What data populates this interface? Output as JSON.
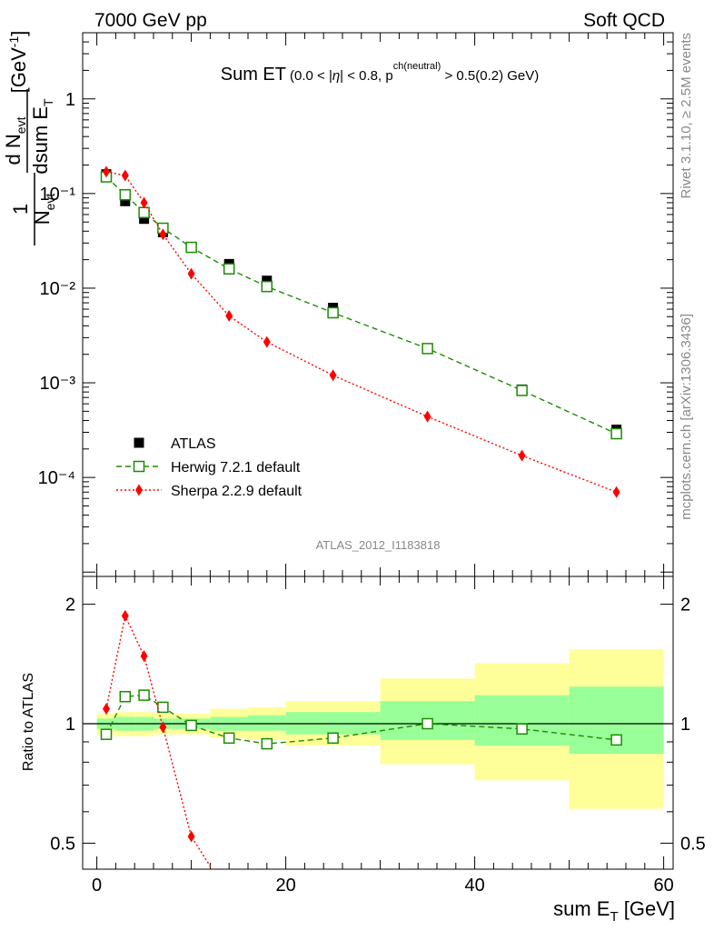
{
  "header": {
    "left": "7000 GeV pp",
    "right": "Soft QCD"
  },
  "side": {
    "rivet": "Rivet 3.1.10, ≥ 2.5M events",
    "mcplots": "mcplots.cern.ch [arXiv:1306.3436]"
  },
  "watermark": "ATLAS_2012_I1183818",
  "colors": {
    "atlas": "#000000",
    "herwig": "#1a8c00",
    "sherpa": "#ff0000",
    "band_inner": "#99ff99",
    "band_outer": "#ffff99"
  },
  "chart_data": [
    {
      "type": "scatter",
      "title": "Sum ET (0.0 < |η| < 0.8, p_T^ch(neutral) > 0.5(0.2) GeV)",
      "title_main": "Sum ET",
      "title_sel_a": "(0.0 < |",
      "title_sel_eta": "η",
      "title_sel_b": "| < 0.8, p",
      "title_sel_sup": "ch(neutral)",
      "title_sel_c": " > 0.5(0.2) GeV)",
      "ylabel": "1/N_evt dN_evt/dsumE_T [GeV^-1]",
      "yscale": "log",
      "xlim": [
        -1.5,
        61
      ],
      "ylim": [
        9e-06,
        5
      ],
      "yticks": [
        {
          "value": 1,
          "label": "1"
        },
        {
          "value": 0.1,
          "label": "10⁻¹"
        },
        {
          "value": 0.01,
          "label": "10⁻²"
        },
        {
          "value": 0.001,
          "label": "10⁻³"
        },
        {
          "value": 0.0001,
          "label": "10⁻⁴"
        }
      ],
      "legend_position": "lower-left",
      "series": [
        {
          "name": "ATLAS",
          "marker": "filled-square",
          "x": [
            1,
            3,
            5,
            7,
            10,
            14,
            18,
            25,
            35,
            45,
            55
          ],
          "y": [
            0.16,
            0.083,
            0.054,
            0.039,
            0.027,
            0.018,
            0.012,
            0.0062,
            0.0023,
            0.00085,
            0.00032
          ]
        },
        {
          "name": "Herwig 7.2.1 default",
          "marker": "open-square",
          "line": "dashed",
          "x": [
            1,
            3,
            5,
            7,
            10,
            14,
            18,
            25,
            35,
            45,
            55
          ],
          "y": [
            0.15,
            0.097,
            0.063,
            0.043,
            0.027,
            0.016,
            0.0104,
            0.0055,
            0.0023,
            0.00083,
            0.00029
          ]
        },
        {
          "name": "Sherpa 2.2.9 default",
          "marker": "filled-diamond",
          "line": "dotted",
          "x": [
            1,
            3,
            5,
            7,
            10,
            14,
            18,
            25,
            35,
            45,
            55
          ],
          "y": [
            0.17,
            0.155,
            0.08,
            0.037,
            0.0142,
            0.0051,
            0.0027,
            0.0012,
            0.00044,
            0.00017,
            7e-05
          ]
        }
      ]
    },
    {
      "type": "line",
      "ylabel": "Ratio to ATLAS",
      "xlabel": "sum E_T [GeV]",
      "yscale": "log",
      "xlim": [
        -1.5,
        61
      ],
      "ylim": [
        0.43,
        2.35
      ],
      "xticks": [
        0,
        20,
        40,
        60
      ],
      "yticks": [
        {
          "value": 0.5,
          "label": "0.5"
        },
        {
          "value": 1,
          "label": "1"
        },
        {
          "value": 2,
          "label": "2"
        }
      ],
      "bands": {
        "edges": [
          0,
          2,
          4,
          6,
          8,
          12,
          16,
          20,
          30,
          40,
          50,
          60
        ],
        "inner_lo": [
          0.97,
          0.96,
          0.96,
          0.97,
          0.97,
          0.96,
          0.96,
          0.94,
          0.91,
          0.88,
          0.84
        ],
        "inner_hi": [
          1.03,
          1.04,
          1.04,
          1.03,
          1.03,
          1.04,
          1.05,
          1.07,
          1.14,
          1.18,
          1.24
        ],
        "outer_lo": [
          0.94,
          0.93,
          0.93,
          0.94,
          0.94,
          0.92,
          0.91,
          0.88,
          0.79,
          0.72,
          0.61
        ],
        "outer_hi": [
          1.06,
          1.07,
          1.07,
          1.06,
          1.06,
          1.09,
          1.1,
          1.14,
          1.3,
          1.42,
          1.54
        ]
      },
      "series": [
        {
          "name": "Herwig 7.2.1 default",
          "marker": "open-square",
          "line": "dashed",
          "x": [
            1,
            3,
            5,
            7,
            10,
            14,
            18,
            25,
            35,
            45,
            55
          ],
          "y": [
            0.94,
            1.17,
            1.18,
            1.1,
            0.99,
            0.92,
            0.89,
            0.92,
            1.0,
            0.97,
            0.91
          ]
        },
        {
          "name": "Sherpa 2.2.9 default",
          "marker": "filled-diamond",
          "line": "dotted",
          "x": [
            1,
            3,
            5,
            7,
            10,
            12.2
          ],
          "y": [
            1.09,
            1.87,
            1.48,
            0.98,
            0.52,
            0.43
          ]
        }
      ]
    }
  ]
}
